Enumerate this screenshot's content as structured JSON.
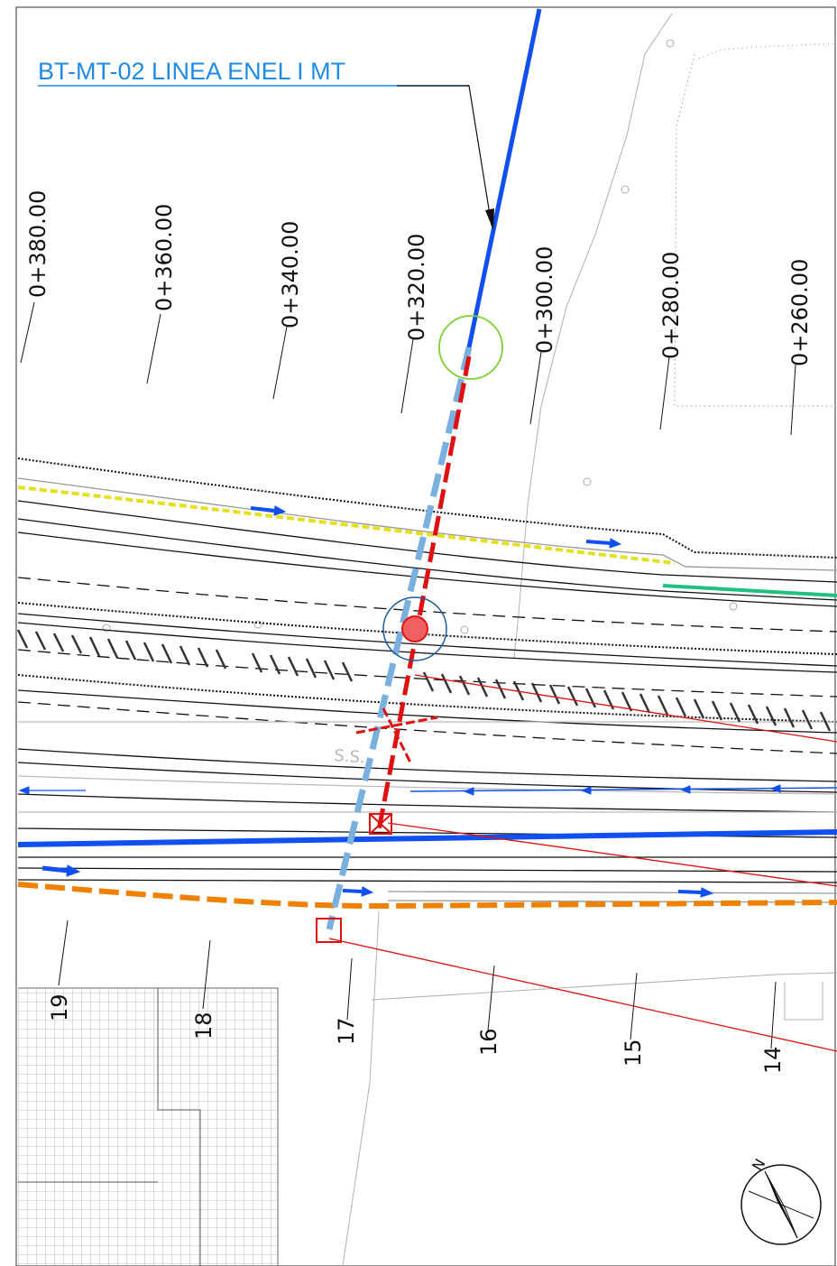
{
  "title_label": "BT-MT-02 LINEA ENEL I  MT",
  "stations": [
    "0+380.00",
    "0+360.00",
    "0+340.00",
    "0+320.00",
    "0+300.00",
    "0+280.00",
    "0+260.00"
  ],
  "sections": [
    "19",
    "18",
    "17",
    "16",
    "15",
    "14"
  ],
  "road_label": "S.S.",
  "north_label": "N",
  "colors": {
    "mt_line_existing": "#1150f0",
    "mt_line_dismiss": "#7ab0e0",
    "new_line": "#e01010",
    "orange_line": "#f08000",
    "yellow_line": "#e4e020",
    "green_line": "#20c080",
    "label_blue": "#1e8be6"
  }
}
